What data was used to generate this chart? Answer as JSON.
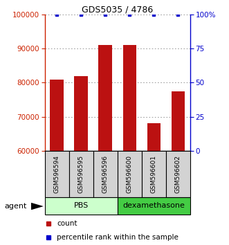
{
  "title": "GDS5035 / 4786",
  "samples": [
    "GSM596594",
    "GSM596595",
    "GSM596596",
    "GSM596600",
    "GSM596601",
    "GSM596602"
  ],
  "counts": [
    81000,
    82000,
    91000,
    91000,
    68000,
    77500
  ],
  "percentiles": [
    100,
    100,
    100,
    100,
    100,
    100
  ],
  "ylim_left": [
    60000,
    100000
  ],
  "ylim_right": [
    0,
    100
  ],
  "yticks_left": [
    60000,
    70000,
    80000,
    90000,
    100000
  ],
  "yticks_right": [
    0,
    25,
    50,
    75,
    100
  ],
  "bar_color": "#bb1111",
  "dot_color": "#0000cc",
  "groups": [
    {
      "label": "PBS",
      "indices": [
        0,
        1,
        2
      ],
      "color": "#ccffcc"
    },
    {
      "label": "dexamethasone",
      "indices": [
        3,
        4,
        5
      ],
      "color": "#44cc44"
    }
  ],
  "agent_label": "agent",
  "legend_count_label": "count",
  "legend_pct_label": "percentile rank within the sample",
  "left_axis_color": "#cc2200",
  "right_axis_color": "#0000cc",
  "grid_color": "#888888",
  "sample_box_color": "#d3d3d3"
}
